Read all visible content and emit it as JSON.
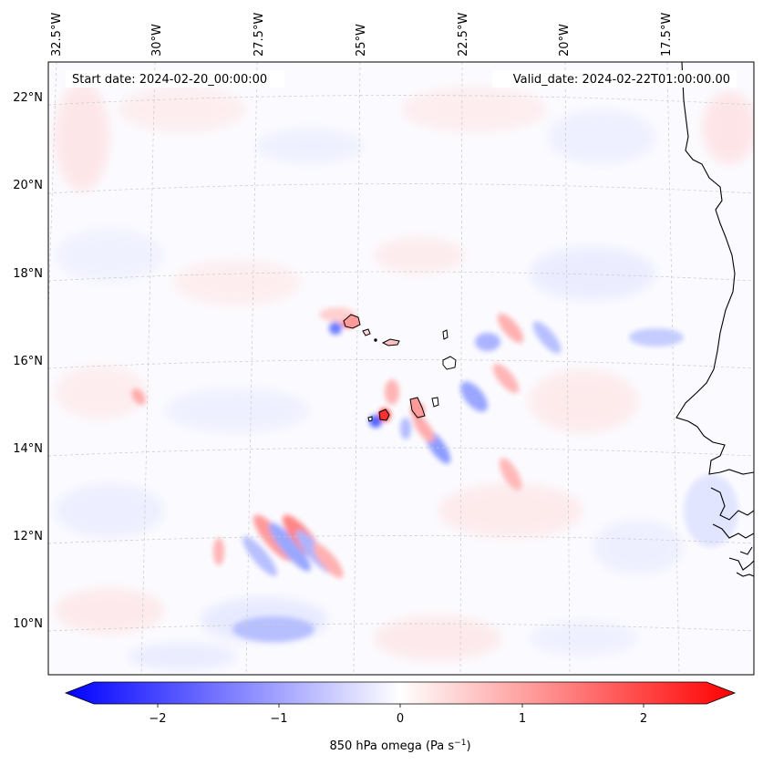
{
  "header": {
    "start_date": "Start date: 2024-02-20_00:00:00",
    "valid_date": "Valid_date: 2024-02-22T01:00:00.00"
  },
  "map": {
    "lon_labels": [
      "32.5°W",
      "30°W",
      "27.5°W",
      "25°W",
      "22.5°W",
      "20°W",
      "17.5°W"
    ],
    "lat_labels": [
      "22°N",
      "20°N",
      "18°N",
      "16°N",
      "14°N",
      "12°N",
      "10°N"
    ],
    "variable": "850 hPa omega"
  },
  "colorbar": {
    "ticks": [
      "−2",
      "−1",
      "0",
      "1",
      "2"
    ],
    "label_prefix": "850 hPa omega (Pa s",
    "label_exp": "−1",
    "label_suffix": ")",
    "vmin": -2.7,
    "vmax": 2.7,
    "colormap": "bwr",
    "color_low": "#0000ff",
    "color_mid": "#ffffff",
    "color_high": "#ff0000"
  },
  "colors": {
    "coastline": "#000000",
    "gridline": "#c8c8c8",
    "blue_anomaly": "#6a7dff",
    "red_anomaly": "#ff6a6a"
  }
}
